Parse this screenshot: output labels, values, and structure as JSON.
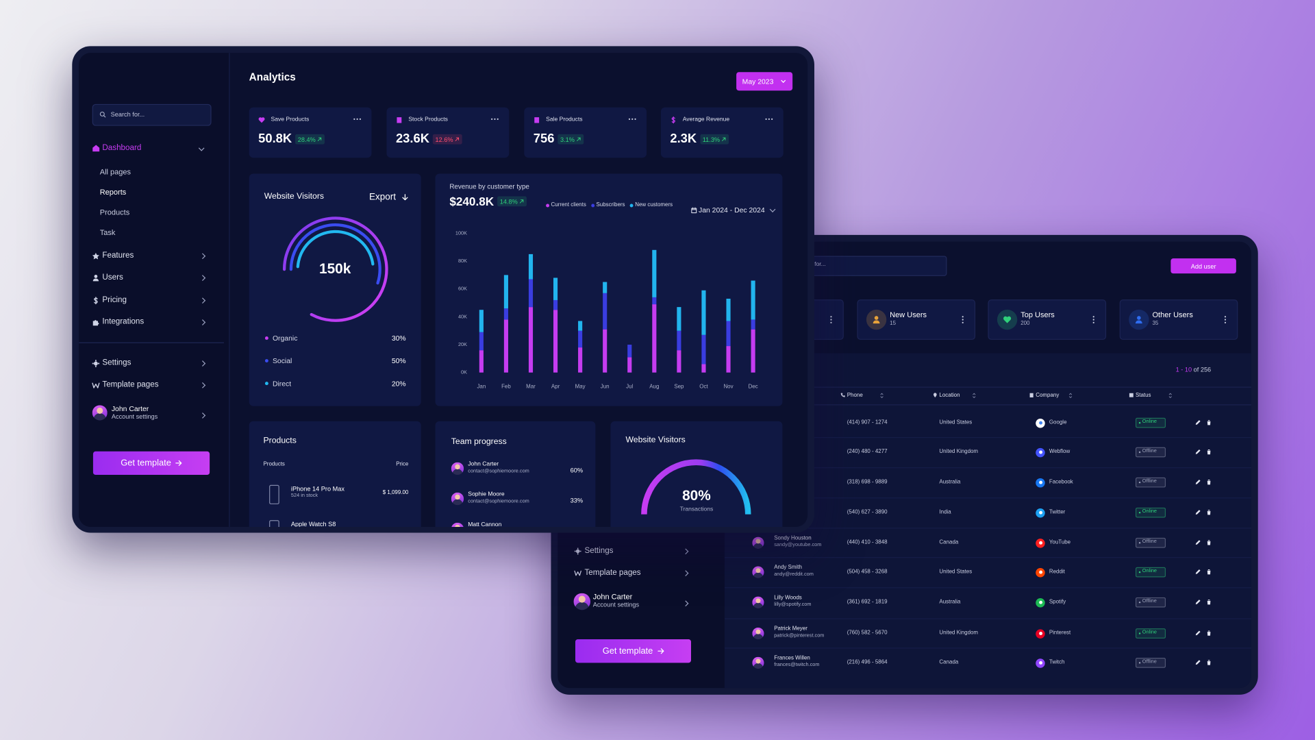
{
  "analytics": {
    "sidebar": {
      "search": "Search for...",
      "dashboard": "Dashboard",
      "subpages": [
        "All pages",
        "Reports",
        "Products",
        "Task"
      ],
      "menu": [
        "Features",
        "Users",
        "Pricing",
        "Integrations"
      ],
      "settings": "Settings",
      "template_pages": "Template pages",
      "user_name": "John Carter",
      "user_subtitle": "Account settings",
      "cta": "Get template"
    },
    "title": "Analytics",
    "period": "May 2023",
    "stats": [
      {
        "label": "Save Products",
        "value": "50.8K",
        "change": "28.4%",
        "color": "#2fd07a"
      },
      {
        "label": "Stock Products",
        "value": "23.6K",
        "change": "12.6%",
        "color": "#ff4d6d"
      },
      {
        "label": "Sale Products",
        "value": "756",
        "change": "3.1%",
        "color": "#2fd07a"
      },
      {
        "label": "Average Revenue",
        "value": "2.3K",
        "change": "11.3%",
        "color": "#2fd07a"
      }
    ],
    "visitors": {
      "title": "Website Visitors",
      "action": "Export",
      "total": "150k",
      "sources": [
        {
          "label": "Organic",
          "share": "30%",
          "color": "#c63cf2"
        },
        {
          "label": "Social",
          "share": "50%",
          "color": "#3a4cf0"
        },
        {
          "label": "Direct",
          "share": "20%",
          "color": "#22b8f0"
        }
      ]
    },
    "revenue": {
      "title": "Revenue by customer type",
      "total": "$240.8K",
      "change": "14.8%",
      "change_color": "#2fd07a",
      "range": "Jan 2024 - Dec 2024",
      "chart_data": {
        "type": "bar",
        "stacked": true,
        "categories": [
          "Jan",
          "Feb",
          "Mar",
          "Apr",
          "May",
          "Jun",
          "Jul",
          "Aug",
          "Sep",
          "Oct",
          "Nov",
          "Dec"
        ],
        "series": [
          {
            "name": "Current clients",
            "color": "#c53cf0",
            "values": [
              16,
              38,
              47,
              45,
              18,
              31,
              11,
              49,
              16,
              6,
              19,
              31
            ]
          },
          {
            "name": "Subscribers",
            "color": "#3a3de0",
            "values": [
              13,
              8,
              20,
              7,
              12,
              26,
              9,
              5,
              14,
              21,
              18,
              7
            ]
          },
          {
            "name": "New customers",
            "color": "#22b4ee",
            "values": [
              16,
              24,
              18,
              16,
              7,
              8,
              0,
              34,
              17,
              32,
              16,
              28
            ]
          }
        ],
        "ylim": [
          0,
          100
        ],
        "yticks": [
          {
            "value": 0,
            "label": "0K"
          },
          {
            "value": 20,
            "label": "20K"
          },
          {
            "value": 40,
            "label": "40K"
          },
          {
            "value": 60,
            "label": "60K"
          },
          {
            "value": 80,
            "label": "80K"
          },
          {
            "value": 100,
            "label": "100K"
          }
        ]
      }
    },
    "products": {
      "title": "Products",
      "columns": [
        "Products",
        "Price"
      ],
      "rows": [
        {
          "name": "iPhone 14 Pro Max",
          "stock": "524 in stock",
          "price": "$ 1,099.00"
        },
        {
          "name": "Apple Watch S8"
        }
      ]
    },
    "team": {
      "title": "Team progress",
      "members": [
        {
          "name": "John Carter",
          "email": "contact@sophiemoore.com",
          "progress": "60%"
        },
        {
          "name": "Sophie Moore",
          "email": "contact@sophiemoore.com",
          "progress": "33%"
        },
        {
          "name": "Matt Cannon"
        }
      ]
    },
    "transactions": {
      "title": "Website Visitors",
      "value": "80%",
      "label": "Transactions"
    }
  },
  "users": {
    "sidebar": {
      "settings": "Settings",
      "template_pages": "Template pages",
      "user_name": "John Carter",
      "user_subtitle": "Account settings",
      "cta": "Get template"
    },
    "search": "Search for...",
    "add_button": "Add user",
    "cards": [
      {
        "title": "New Users",
        "count": "15",
        "color": "#e8a23a"
      },
      {
        "title": "Top Users",
        "count": "200",
        "color": "#2fd07a"
      },
      {
        "title": "Other Users",
        "count": "35",
        "color": "#2f6df0"
      }
    ],
    "pagination": {
      "range": "1 - 10",
      "total": "of 256"
    },
    "columns": [
      "Phone",
      "Location",
      "Company",
      "Status"
    ],
    "rows": [
      {
        "phone": "(414) 907 - 1274",
        "location": "United States",
        "company": "Google",
        "company_color": "#ffffff",
        "status": "Online",
        "status_color": "#2fd07a"
      },
      {
        "phone": "(240) 480 - 4277",
        "location": "United Kingdom",
        "company": "Webflow",
        "company_color": "#4353ff",
        "status": "Offline",
        "status_color": "#9aa0b8"
      },
      {
        "phone": "(318) 698 - 9889",
        "location": "Australia",
        "company": "Facebook",
        "company_color": "#1877f2",
        "status": "Offline",
        "status_color": "#9aa0b8"
      },
      {
        "phone": "(540) 627 - 3890",
        "location": "India",
        "company": "Twitter",
        "company_color": "#1da1f2",
        "status": "Online",
        "status_color": "#2fd07a"
      },
      {
        "name": "Sondy Houston",
        "email": "sandy@youtube.com",
        "phone": "(440) 410 - 3848",
        "location": "Canada",
        "company": "YouTube",
        "company_color": "#ff2020",
        "status": "Offline",
        "status_color": "#9aa0b8"
      },
      {
        "name": "Andy Smith",
        "email": "andy@reddit.com",
        "phone": "(504) 458 - 3268",
        "location": "United States",
        "company": "Reddit",
        "company_color": "#ff4500",
        "status": "Online",
        "status_color": "#2fd07a"
      },
      {
        "name": "Lilly Woods",
        "email": "lilly@spotify.com",
        "phone": "(361) 692 - 1819",
        "location": "Australia",
        "company": "Spotify",
        "company_color": "#1db954",
        "status": "Offline",
        "status_color": "#9aa0b8"
      },
      {
        "name": "Patrick Meyer",
        "email": "patrick@pinterest.com",
        "phone": "(760) 582 - 5670",
        "location": "United Kingdom",
        "company": "Pinterest",
        "company_color": "#e60023",
        "status": "Online",
        "status_color": "#2fd07a"
      },
      {
        "name": "Frances Willen",
        "email": "frances@twitch.com",
        "phone": "(216) 496 - 5864",
        "location": "Canada",
        "company": "Twitch",
        "company_color": "#9146ff",
        "status": "Offline",
        "status_color": "#9aa0b8"
      }
    ]
  }
}
